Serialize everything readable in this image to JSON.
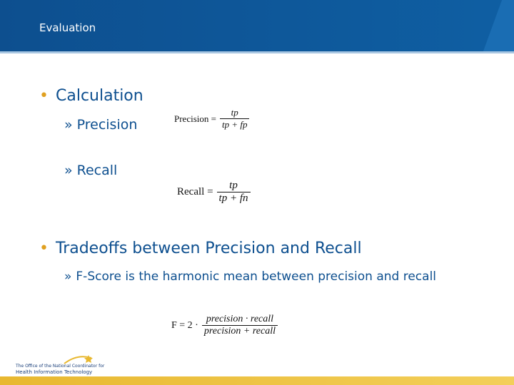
{
  "header": {
    "title": "Evaluation"
  },
  "markers": {
    "bullet": "•",
    "sub_bullet": "»"
  },
  "sections": [
    {
      "title": "Calculation",
      "items": [
        {
          "label": "Precision",
          "formula": {
            "lhs": "Precision =",
            "numerator": "tp",
            "denominator": "tp + fp"
          }
        },
        {
          "label": "Recall",
          "formula": {
            "lhs": "Recall =",
            "numerator": "tp",
            "denominator": "tp + fn"
          }
        }
      ]
    },
    {
      "title": "Tradeoffs between Precision and Recall",
      "items": [
        {
          "label": "F-Score is the harmonic mean between precision and recall",
          "formula": {
            "lhs": "F = 2 ·",
            "numerator": "precision · recall",
            "denominator": "precision + recall"
          }
        }
      ]
    }
  ],
  "footer": {
    "logo_line1": "The Office of the National Coordinator for",
    "logo_line2": "Health Information Technology"
  }
}
